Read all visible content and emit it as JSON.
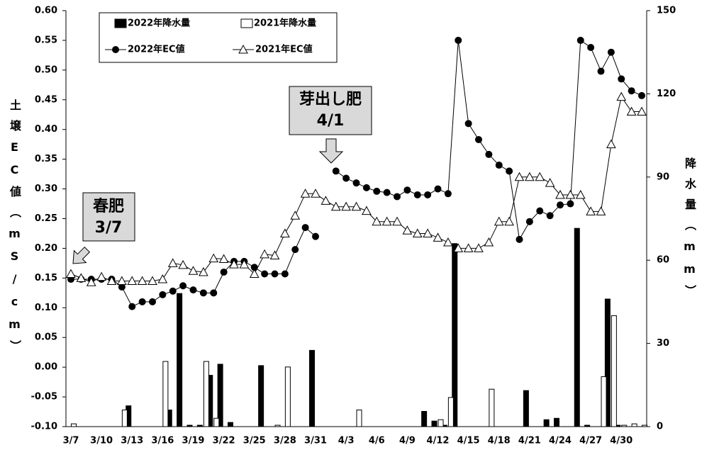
{
  "chart_data": {
    "type": "combo",
    "ylabel": "土壌EC値（mS/cm）",
    "y2label": "降水量（mm）",
    "categories": [
      "3/7",
      null,
      null,
      "3/10",
      null,
      null,
      "3/13",
      null,
      null,
      "3/16",
      null,
      null,
      "3/19",
      null,
      null,
      "3/22",
      null,
      null,
      "3/25",
      null,
      null,
      "3/28",
      null,
      null,
      "3/31",
      null,
      null,
      "4/3",
      null,
      null,
      "4/6",
      null,
      null,
      "4/9",
      null,
      null,
      "4/12",
      null,
      null,
      "4/15",
      null,
      null,
      "4/18",
      null,
      null,
      "4/21",
      null,
      null,
      "4/24",
      null,
      null,
      "4/27",
      null,
      null,
      "4/30",
      null,
      null
    ],
    "ylim": [
      -0.1,
      0.6
    ],
    "yticks": [
      {
        "value": -0.1,
        "label": "-0.10"
      },
      -0.05,
      {
        "value": 0,
        "label": "0.00"
      },
      0.05,
      {
        "value": 0.1,
        "label": "0.10"
      },
      0.15,
      {
        "value": 0.2,
        "label": "0.20"
      },
      0.25,
      {
        "value": 0.3,
        "label": "0.30"
      },
      0.35,
      {
        "value": 0.4,
        "label": "0.40"
      },
      0.45,
      {
        "value": 0.5,
        "label": "0.50"
      },
      0.55,
      {
        "value": 0.6,
        "label": "0.60"
      }
    ],
    "y2lim": [
      0,
      150
    ],
    "y2ticks": [
      0,
      30,
      60,
      90,
      120,
      150
    ],
    "series": [
      {
        "name": "2022年降水量",
        "type": "bar",
        "axis": "y2",
        "color": "#000000",
        "values": [
          0,
          0,
          0,
          0,
          0,
          0,
          7.5,
          0,
          0,
          0,
          6,
          48,
          0.5,
          0.5,
          18.5,
          22.5,
          1.5,
          0,
          0,
          22,
          0,
          0,
          0,
          0,
          27.5,
          0,
          0,
          0,
          0,
          0,
          0,
          0,
          0,
          0,
          0,
          5.5,
          2,
          0.5,
          66,
          0,
          0,
          0,
          0,
          0,
          0,
          13,
          0,
          2.5,
          3,
          0,
          71.5,
          0.5,
          0,
          46,
          0.5,
          0,
          0
        ]
      },
      {
        "name": "2021年降水量",
        "type": "bar",
        "axis": "y2",
        "color": "#ffffff",
        "values": [
          1,
          0,
          0,
          0,
          0,
          6,
          0,
          0,
          0,
          23.5,
          0,
          0,
          0,
          23.5,
          3,
          0,
          0,
          0,
          0,
          0,
          0.5,
          21.5,
          0,
          0,
          0,
          0,
          0,
          0,
          6,
          0,
          0,
          0,
          0,
          0,
          0,
          0,
          2.5,
          10.5,
          0,
          0,
          0,
          13.5,
          0,
          0,
          0,
          0,
          0,
          0,
          0,
          0,
          0,
          0,
          18,
          40,
          0.5,
          1,
          0.5
        ]
      },
      {
        "name": "2022年EC値",
        "type": "line",
        "axis": "y",
        "color": "#000000",
        "marker": "circle",
        "values": [
          0.148,
          0.148,
          0.148,
          0.148,
          0.148,
          0.135,
          0.102,
          0.11,
          0.11,
          0.122,
          0.128,
          0.137,
          0.13,
          0.125,
          0.125,
          0.16,
          0.178,
          0.178,
          0.168,
          0.157,
          0.157,
          0.157,
          0.198,
          0.235,
          0.22,
          null,
          0.33,
          0.318,
          0.31,
          0.302,
          0.296,
          0.294,
          0.287,
          0.298,
          0.29,
          0.29,
          0.3,
          0.292,
          0.55,
          0.41,
          0.383,
          0.358,
          0.34,
          0.33,
          0.215,
          0.245,
          0.263,
          0.255,
          0.273,
          0.275,
          0.55,
          0.538,
          0.498,
          0.53,
          0.485,
          0.465,
          0.457
        ]
      },
      {
        "name": "2021年EC値",
        "type": "line",
        "axis": "y",
        "color": "#000000",
        "marker": "triangle",
        "values": [
          0.157,
          0.15,
          0.143,
          0.152,
          0.145,
          0.145,
          0.145,
          0.145,
          0.145,
          0.148,
          0.175,
          0.172,
          0.162,
          0.16,
          0.183,
          0.182,
          0.173,
          0.173,
          0.157,
          0.19,
          0.188,
          0.225,
          0.255,
          0.292,
          0.292,
          0.28,
          0.27,
          0.27,
          0.27,
          0.263,
          0.245,
          0.245,
          0.245,
          0.23,
          0.225,
          0.225,
          0.218,
          0.21,
          0.2,
          0.2,
          0.2,
          0.21,
          0.245,
          0.245,
          0.32,
          0.32,
          0.32,
          0.31,
          0.29,
          0.29,
          0.29,
          0.262,
          0.262,
          0.375,
          0.455,
          0.43,
          0.43
        ]
      }
    ],
    "annotations": [
      {
        "lines": [
          "春肥",
          "3/7"
        ]
      },
      {
        "lines": [
          "芽出し肥",
          "4/1"
        ]
      }
    ]
  }
}
